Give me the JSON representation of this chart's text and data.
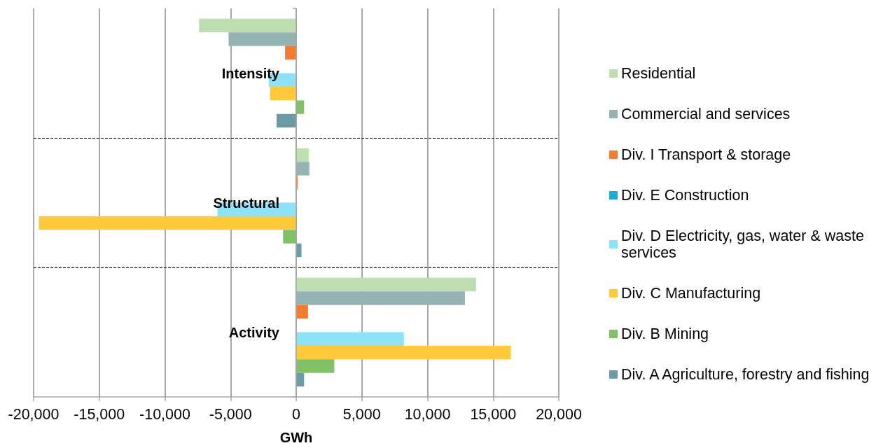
{
  "chart_data": {
    "type": "bar",
    "orientation": "horizontal",
    "categories": [
      "Intensity",
      "Structural",
      "Activity"
    ],
    "series": [
      {
        "name": "Residential",
        "color": "#bddfb0",
        "values": [
          -7400,
          950,
          13700
        ]
      },
      {
        "name": "Commercial and services",
        "color": "#95b3b4",
        "values": [
          -5150,
          1000,
          12850
        ]
      },
      {
        "name": "Div. I Transport & storage",
        "color": "#f47b30",
        "values": [
          -850,
          100,
          900
        ]
      },
      {
        "name": "Div. E Construction",
        "color": "#1fabd8",
        "values": [
          0,
          0,
          0
        ]
      },
      {
        "name": "Div. D Electricity, gas, water & waste services",
        "color": "#8de2f8",
        "values": [
          -2100,
          -6000,
          8200
        ]
      },
      {
        "name": "Div. C Manufacturing",
        "color": "#ffca3a",
        "values": [
          -2000,
          -19600,
          16350
        ]
      },
      {
        "name": "Div. B Mining",
        "color": "#80c066",
        "values": [
          600,
          -1000,
          2900
        ]
      },
      {
        "name": "Div. A Agriculture, forestry and fishing",
        "color": "#6a9ba6",
        "values": [
          -1500,
          400,
          600
        ]
      }
    ],
    "xlabel": "GWh",
    "xlim": [
      -20000,
      20000
    ],
    "xticks": [
      {
        "value": -20000,
        "label": "-20,000"
      },
      {
        "value": -15000,
        "label": "-15,000"
      },
      {
        "value": -10000,
        "label": "-10,000"
      },
      {
        "value": -5000,
        "label": "-5,000"
      },
      0,
      {
        "value": 5000,
        "label": "5,000"
      },
      {
        "value": 10000,
        "label": "10,000"
      },
      {
        "value": 15000,
        "label": "15,000"
      },
      {
        "value": 20000,
        "label": "20,000"
      }
    ],
    "grid": true,
    "legend": "right"
  }
}
